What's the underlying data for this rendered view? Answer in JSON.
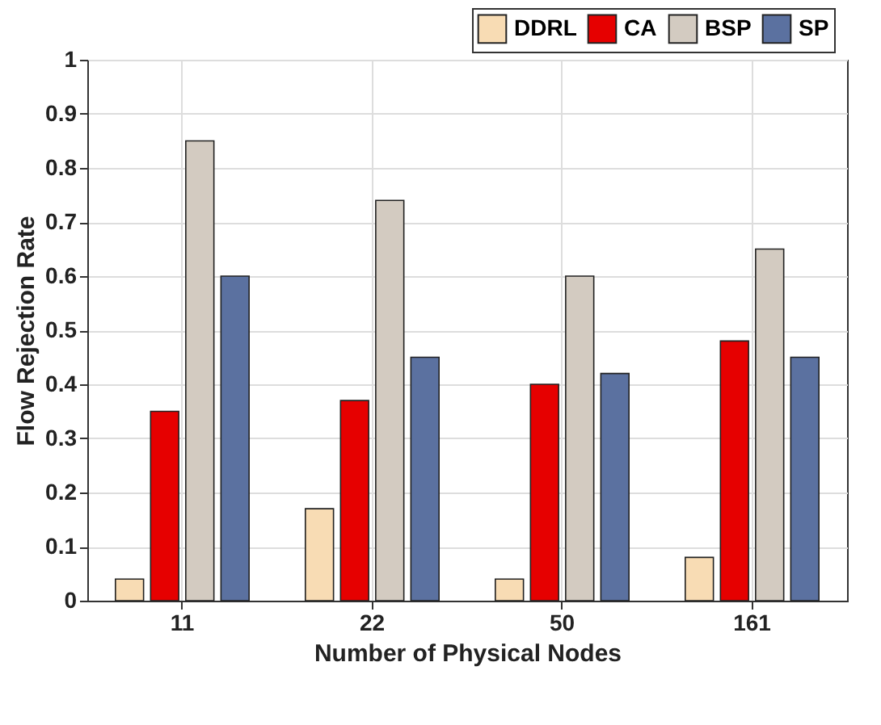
{
  "chart_data": {
    "type": "bar",
    "xlabel": "Number of Physical Nodes",
    "ylabel": "Flow Rejection Rate",
    "categories": [
      "11",
      "22",
      "50",
      "161"
    ],
    "series": [
      {
        "name": "DDRL",
        "color": "#f8dcb4",
        "values": [
          0.04,
          0.17,
          0.04,
          0.08
        ]
      },
      {
        "name": "CA",
        "color": "#e60000",
        "values": [
          0.35,
          0.37,
          0.4,
          0.48
        ]
      },
      {
        "name": "BSP",
        "color": "#d3cbc1",
        "values": [
          0.85,
          0.74,
          0.6,
          0.65
        ]
      },
      {
        "name": "SP",
        "color": "#5b71a0",
        "values": [
          0.6,
          0.45,
          0.42,
          0.45
        ]
      }
    ],
    "ylim": [
      0,
      1
    ],
    "yticks": [
      0,
      0.1,
      0.2,
      0.3,
      0.4,
      0.5,
      0.6,
      0.7,
      0.8,
      0.9,
      1
    ],
    "grid": true,
    "legend": "top right"
  }
}
